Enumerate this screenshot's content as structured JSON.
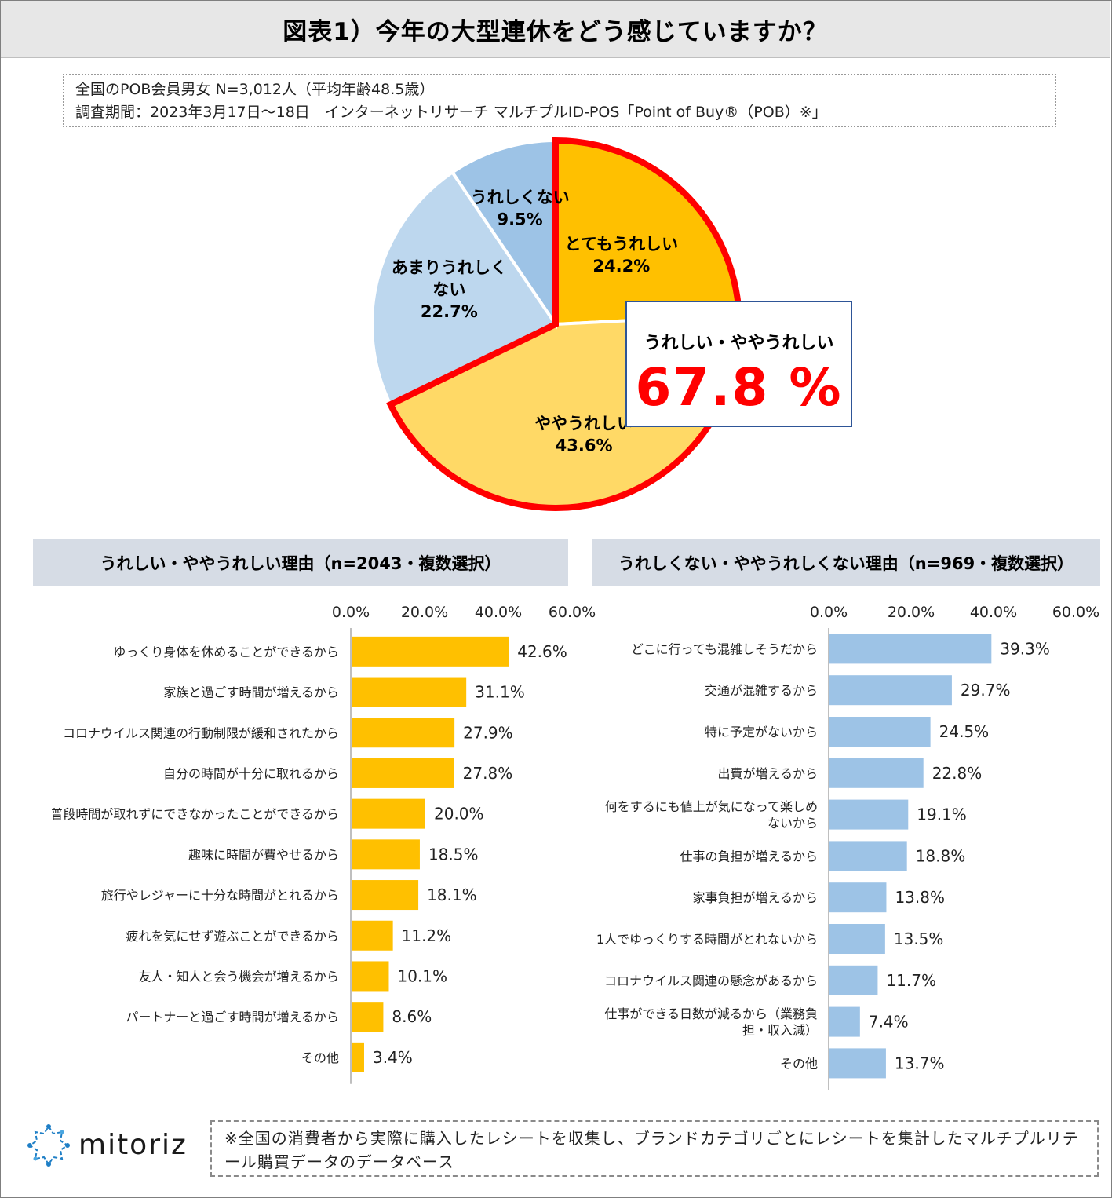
{
  "header": {
    "title": "図表1）今年の大型連休をどう感じていますか？"
  },
  "survey": {
    "line1": "全国のPOB会員男女 N=3,012人（平均年齢48.5歳）",
    "line2": "調査期間：2023年3月17日～18日　インターネットリサーチ マルチプルID-POS「Point of Buy®（POB）※」"
  },
  "callout": {
    "caption": "うれしい・ややうれしい",
    "value": "67.8 %"
  },
  "colors": {
    "very_happy": "#ffc000",
    "somewhat_happy": "#ffd966",
    "not_very_happy": "#bdd7ee",
    "not_happy": "#9dc3e6",
    "highlight": "#ff0000",
    "callout_border": "#2e5597",
    "left_bar": "#ffc000",
    "right_bar": "#9dc3e6"
  },
  "chart_data": [
    {
      "type": "pie",
      "title": "今年の大型連休をどう感じていますか？",
      "slices": [
        {
          "label": "とてもうれしい",
          "value": 24.2,
          "label_text": "24.2%",
          "lines": [
            "とてもうれしい",
            "24.2%"
          ]
        },
        {
          "label": "ややうれしい",
          "value": 43.6,
          "label_text": "43.6%",
          "lines": [
            "ややうれしい",
            "43.6%"
          ]
        },
        {
          "label": "あまりうれしくない",
          "value": 22.7,
          "label_text": "22.7%",
          "lines": [
            "あまりうれしく",
            "ない",
            "22.7%"
          ]
        },
        {
          "label": "うれしくない",
          "value": 9.5,
          "label_text": "9.5%",
          "lines": [
            "うれしくない",
            "9.5%"
          ]
        }
      ],
      "highlighted": [
        "とてもうれしい",
        "ややうれしい"
      ]
    },
    {
      "type": "bar",
      "orientation": "horizontal",
      "title": "うれしい・ややうれしい理由（n=2043・複数選択）",
      "xlim": [
        0,
        60
      ],
      "ticks": [
        "0.0%",
        "20.0%",
        "40.0%",
        "60.0%"
      ],
      "categories": [
        [
          "ゆっくり身体を休めることができるから"
        ],
        [
          "家族と過ごす時間が増えるから"
        ],
        [
          "コロナウイルス関連の行動制限が緩和されたから"
        ],
        [
          "自分の時間が十分に取れるから"
        ],
        [
          "普段時間が取れずにできなかったことができるから"
        ],
        [
          "趣味に時間が費やせるから"
        ],
        [
          "旅行やレジャーに十分な時間がとれるから"
        ],
        [
          "疲れを気にせず遊ぶことができるから"
        ],
        [
          "友人・知人と会う機会が増えるから"
        ],
        [
          "パートナーと過ごす時間が増えるから"
        ],
        [
          "その他"
        ]
      ],
      "values": [
        42.6,
        31.1,
        27.9,
        27.8,
        20.0,
        18.5,
        18.1,
        11.2,
        10.1,
        8.6,
        3.4
      ],
      "value_labels": [
        "42.6%",
        "31.1%",
        "27.9%",
        "27.8%",
        "20.0%",
        "18.5%",
        "18.1%",
        "11.2%",
        "10.1%",
        "8.6%",
        "3.4%"
      ]
    },
    {
      "type": "bar",
      "orientation": "horizontal",
      "title": "うれしくない・ややうれしくない理由（n=969・複数選択）",
      "xlim": [
        0,
        60
      ],
      "ticks": [
        "0.0%",
        "20.0%",
        "40.0%",
        "60.0%"
      ],
      "categories": [
        [
          "どこに行っても混雑しそうだから"
        ],
        [
          "交通が混雑するから"
        ],
        [
          "特に予定がないから"
        ],
        [
          "出費が増えるから"
        ],
        [
          "何をするにも値上が気になって楽しめ",
          "ないから"
        ],
        [
          "仕事の負担が増えるから"
        ],
        [
          "家事負担が増えるから"
        ],
        [
          "1人でゆっくりする時間がとれないから"
        ],
        [
          "コロナウイルス関連の懸念があるから"
        ],
        [
          "仕事ができる日数が減るから（業務負",
          "担・収入減）"
        ],
        [
          "その他"
        ]
      ],
      "values": [
        39.3,
        29.7,
        24.5,
        22.8,
        19.1,
        18.8,
        13.8,
        13.5,
        11.7,
        7.4,
        13.7
      ],
      "value_labels": [
        "39.3%",
        "29.7%",
        "24.5%",
        "22.8%",
        "19.1%",
        "18.8%",
        "13.8%",
        "13.5%",
        "11.7%",
        "7.4%",
        "13.7%"
      ]
    }
  ],
  "logo": {
    "text": "mitoriz"
  },
  "footnote": {
    "text": "※全国の消費者から実際に購入したレシートを収集し、ブランドカテゴリごとにレシートを集計したマルチプルリテール購買データのデータベース"
  }
}
